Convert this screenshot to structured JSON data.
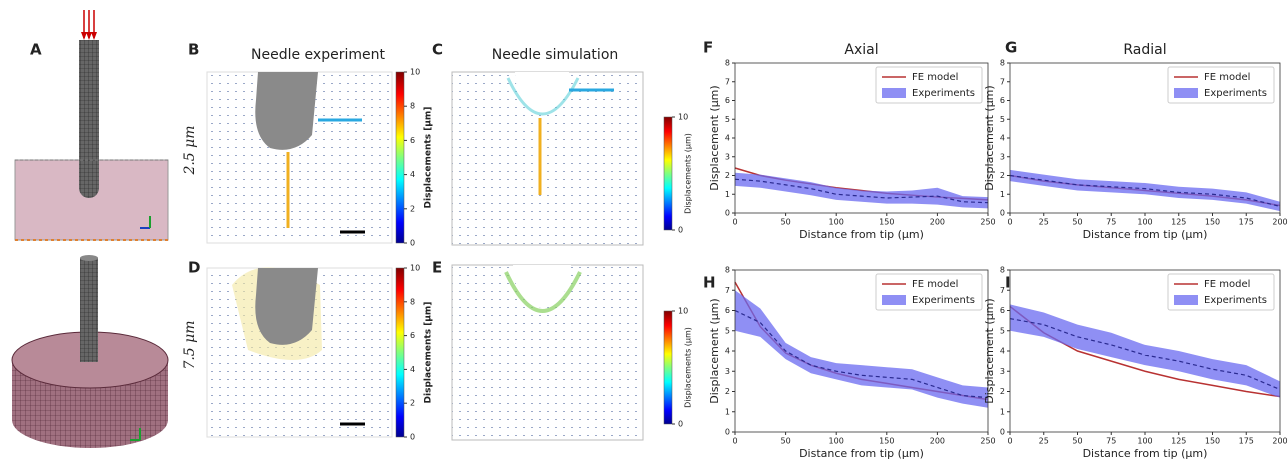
{
  "panel_labels": [
    "A",
    "B",
    "C",
    "D",
    "E",
    "F",
    "G",
    "H",
    "I"
  ],
  "titles": [
    "Needle experiment",
    "Needle simulation"
  ],
  "row_labels": [
    "2.5 μm",
    "7.5 μm"
  ],
  "colorbars": [
    {
      "label": "Displacements [μm]",
      "lim": [
        0,
        10
      ],
      "ticks": [
        0,
        2,
        4,
        6,
        8,
        10
      ]
    },
    {
      "label": "Displacements (μm)",
      "lim": [
        0,
        10
      ],
      "ticks": [
        0,
        10
      ]
    },
    {
      "label": "Displacements [μm]",
      "lim": [
        0,
        10
      ],
      "ticks": [
        0,
        2,
        4,
        6,
        8,
        10
      ]
    },
    {
      "label": "Displacements (μm)",
      "lim": [
        0,
        10
      ],
      "ticks": [
        0,
        10
      ]
    }
  ],
  "chart_data": [
    {
      "type": "line",
      "title": "Axial",
      "x_label": "Distance from tip (μm)",
      "y_label": "Displacement (μm)",
      "x": [
        0,
        25,
        50,
        75,
        100,
        125,
        150,
        175,
        200,
        225,
        250
      ],
      "xlim": [
        0,
        250
      ],
      "xticks": [
        0,
        50,
        100,
        150,
        200,
        250
      ],
      "ylim": [
        0,
        8
      ],
      "yticks": [
        0,
        1,
        2,
        3,
        4,
        5,
        6,
        7,
        8
      ],
      "legend": "upper right",
      "series": [
        {
          "name": "FE model",
          "color": "#b83232",
          "values": [
            2.4,
            2.0,
            1.75,
            1.55,
            1.35,
            1.2,
            1.05,
            0.95,
            0.85,
            0.78,
            0.7
          ]
        },
        {
          "name": "Experiments",
          "color": "#6a6af0",
          "values": [
            1.8,
            1.7,
            1.5,
            1.3,
            1.0,
            0.9,
            0.8,
            0.85,
            0.9,
            0.6,
            0.55
          ],
          "lower": [
            1.45,
            1.35,
            1.15,
            0.95,
            0.7,
            0.6,
            0.5,
            0.5,
            0.45,
            0.3,
            0.25
          ],
          "upper": [
            2.15,
            2.05,
            1.85,
            1.65,
            1.35,
            1.2,
            1.15,
            1.2,
            1.35,
            0.9,
            0.85
          ]
        }
      ]
    },
    {
      "type": "line",
      "title": "Radial",
      "x_label": "Distance from tip (μm)",
      "y_label": "Displacement (μm)",
      "x": [
        0,
        25,
        50,
        75,
        100,
        125,
        150,
        175,
        200
      ],
      "xlim": [
        0,
        200
      ],
      "xticks": [
        0,
        25,
        50,
        75,
        100,
        125,
        150,
        175,
        200
      ],
      "ylim": [
        0,
        8
      ],
      "yticks": [
        0,
        1,
        2,
        3,
        4,
        5,
        6,
        7,
        8
      ],
      "legend": "upper right",
      "series": [
        {
          "name": "FE model",
          "color": "#b83232",
          "values": [
            2.0,
            1.7,
            1.5,
            1.35,
            1.2,
            1.05,
            0.9,
            0.7,
            0.4
          ]
        },
        {
          "name": "Experiments",
          "color": "#6a6af0",
          "values": [
            2.0,
            1.75,
            1.5,
            1.4,
            1.3,
            1.1,
            1.0,
            0.8,
            0.35
          ],
          "lower": [
            1.7,
            1.45,
            1.2,
            1.1,
            1.0,
            0.8,
            0.7,
            0.5,
            0.1
          ],
          "upper": [
            2.3,
            2.05,
            1.8,
            1.7,
            1.6,
            1.4,
            1.3,
            1.1,
            0.6
          ]
        }
      ]
    },
    {
      "type": "line",
      "x_label": "Distance from tip (μm)",
      "y_label": "Displacement (μm)",
      "x": [
        0,
        25,
        50,
        75,
        100,
        125,
        150,
        175,
        200,
        225,
        250
      ],
      "xlim": [
        0,
        250
      ],
      "xticks": [
        0,
        50,
        100,
        150,
        200,
        250
      ],
      "ylim": [
        0,
        8
      ],
      "yticks": [
        0,
        1,
        2,
        3,
        4,
        5,
        6,
        7,
        8
      ],
      "legend": "upper right",
      "series": [
        {
          "name": "FE model",
          "color": "#b83232",
          "values": [
            7.4,
            5.2,
            3.9,
            3.3,
            2.9,
            2.6,
            2.4,
            2.2,
            2.0,
            1.8,
            1.6
          ]
        },
        {
          "name": "Experiments",
          "color": "#6a6af0",
          "values": [
            6.0,
            5.4,
            4.0,
            3.3,
            3.0,
            2.8,
            2.7,
            2.6,
            2.2,
            1.8,
            1.7
          ],
          "lower": [
            5.0,
            4.7,
            3.6,
            2.9,
            2.6,
            2.3,
            2.2,
            2.1,
            1.7,
            1.4,
            1.2
          ],
          "upper": [
            7.0,
            6.1,
            4.4,
            3.7,
            3.4,
            3.3,
            3.2,
            3.1,
            2.7,
            2.3,
            2.2
          ]
        }
      ]
    },
    {
      "type": "line",
      "x_label": "Distance from tip (μm)",
      "y_label": "Displacement (μm)",
      "x": [
        0,
        25,
        50,
        75,
        100,
        125,
        150,
        175,
        200
      ],
      "xlim": [
        0,
        200
      ],
      "xticks": [
        0,
        25,
        50,
        75,
        100,
        125,
        150,
        175,
        200
      ],
      "ylim": [
        0,
        8
      ],
      "yticks": [
        0,
        1,
        2,
        3,
        4,
        5,
        6,
        7,
        8
      ],
      "legend": "upper right",
      "series": [
        {
          "name": "FE model",
          "color": "#b83232",
          "values": [
            6.2,
            4.9,
            4.0,
            3.5,
            3.0,
            2.6,
            2.3,
            2.0,
            1.75
          ]
        },
        {
          "name": "Experiments",
          "color": "#6a6af0",
          "values": [
            5.6,
            5.3,
            4.7,
            4.3,
            3.8,
            3.5,
            3.1,
            2.8,
            2.1
          ],
          "lower": [
            5.0,
            4.7,
            4.1,
            3.7,
            3.3,
            3.0,
            2.6,
            2.3,
            1.7
          ],
          "upper": [
            6.3,
            5.9,
            5.3,
            4.9,
            4.3,
            4.0,
            3.6,
            3.3,
            2.5
          ]
        }
      ]
    }
  ]
}
